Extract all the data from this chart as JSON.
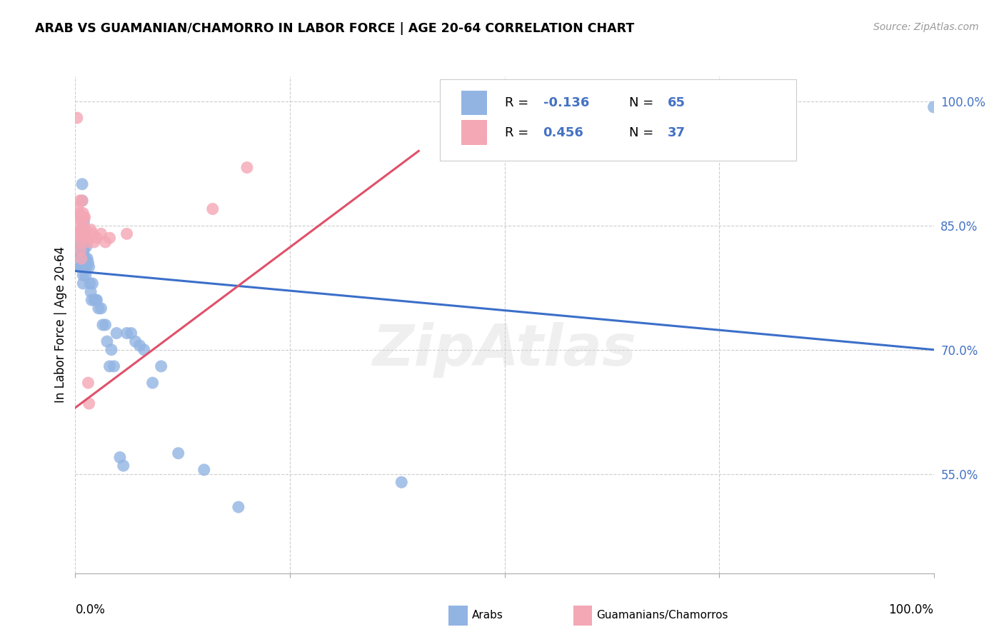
{
  "title": "ARAB VS GUAMANIAN/CHAMORRO IN LABOR FORCE | AGE 20-64 CORRELATION CHART",
  "source": "Source: ZipAtlas.com",
  "ylabel": "In Labor Force | Age 20-64",
  "xlim": [
    0.0,
    1.0
  ],
  "ylim": [
    0.43,
    1.03
  ],
  "legend_R_arab": "-0.136",
  "legend_N_arab": "65",
  "legend_R_guam": "0.456",
  "legend_N_guam": "37",
  "arab_color": "#92b4e3",
  "guam_color": "#f4a7b5",
  "arab_line_color": "#3b6fc9",
  "guam_line_color": "#e0506a",
  "watermark_text": "ZipAtlas",
  "arab_line_x0": 0.0,
  "arab_line_y0": 0.795,
  "arab_line_x1": 1.0,
  "arab_line_y1": 0.7,
  "guam_line_x0": 0.0,
  "guam_line_y0": 0.63,
  "guam_line_x1": 0.4,
  "guam_line_y1": 0.94,
  "xlabel_bottom_left": "0.0%",
  "xlabel_bottom_right": "100.0%",
  "y_ticks": [
    0.55,
    0.7,
    0.85,
    1.0
  ],
  "y_tick_labels": [
    "55.0%",
    "70.0%",
    "85.0%",
    "100.0%"
  ],
  "arab_x": [
    0.003,
    0.004,
    0.005,
    0.005,
    0.006,
    0.006,
    0.006,
    0.007,
    0.007,
    0.007,
    0.008,
    0.008,
    0.008,
    0.008,
    0.009,
    0.009,
    0.009,
    0.009,
    0.009,
    0.009,
    0.01,
    0.01,
    0.01,
    0.01,
    0.01,
    0.011,
    0.011,
    0.011,
    0.012,
    0.012,
    0.013,
    0.013,
    0.014,
    0.015,
    0.016,
    0.017,
    0.018,
    0.019,
    0.02,
    0.022,
    0.024,
    0.025,
    0.027,
    0.03,
    0.032,
    0.035,
    0.037,
    0.04,
    0.042,
    0.045,
    0.048,
    0.052,
    0.056,
    0.06,
    0.065,
    0.07,
    0.075,
    0.08,
    0.09,
    0.1,
    0.12,
    0.15,
    0.19,
    0.38,
    1.0
  ],
  "arab_y": [
    0.83,
    0.82,
    0.815,
    0.8,
    0.825,
    0.81,
    0.8,
    0.82,
    0.815,
    0.8,
    0.9,
    0.88,
    0.855,
    0.84,
    0.83,
    0.82,
    0.81,
    0.8,
    0.79,
    0.78,
    0.855,
    0.84,
    0.83,
    0.82,
    0.81,
    0.84,
    0.83,
    0.8,
    0.81,
    0.79,
    0.825,
    0.8,
    0.81,
    0.805,
    0.8,
    0.78,
    0.77,
    0.76,
    0.78,
    0.76,
    0.76,
    0.76,
    0.75,
    0.75,
    0.73,
    0.73,
    0.71,
    0.68,
    0.7,
    0.68,
    0.72,
    0.57,
    0.56,
    0.72,
    0.72,
    0.71,
    0.705,
    0.7,
    0.66,
    0.68,
    0.575,
    0.555,
    0.51,
    0.54,
    0.993
  ],
  "guam_x": [
    0.002,
    0.003,
    0.004,
    0.004,
    0.005,
    0.005,
    0.005,
    0.006,
    0.006,
    0.006,
    0.007,
    0.007,
    0.007,
    0.007,
    0.008,
    0.008,
    0.008,
    0.009,
    0.009,
    0.01,
    0.01,
    0.011,
    0.012,
    0.013,
    0.014,
    0.015,
    0.016,
    0.018,
    0.02,
    0.022,
    0.025,
    0.03,
    0.035,
    0.04,
    0.06,
    0.16,
    0.2
  ],
  "guam_y": [
    0.98,
    0.87,
    0.86,
    0.84,
    0.88,
    0.865,
    0.85,
    0.84,
    0.83,
    0.82,
    0.86,
    0.845,
    0.835,
    0.81,
    0.88,
    0.86,
    0.845,
    0.865,
    0.85,
    0.86,
    0.84,
    0.86,
    0.845,
    0.835,
    0.83,
    0.66,
    0.635,
    0.845,
    0.84,
    0.83,
    0.835,
    0.84,
    0.83,
    0.835,
    0.84,
    0.87,
    0.92
  ]
}
